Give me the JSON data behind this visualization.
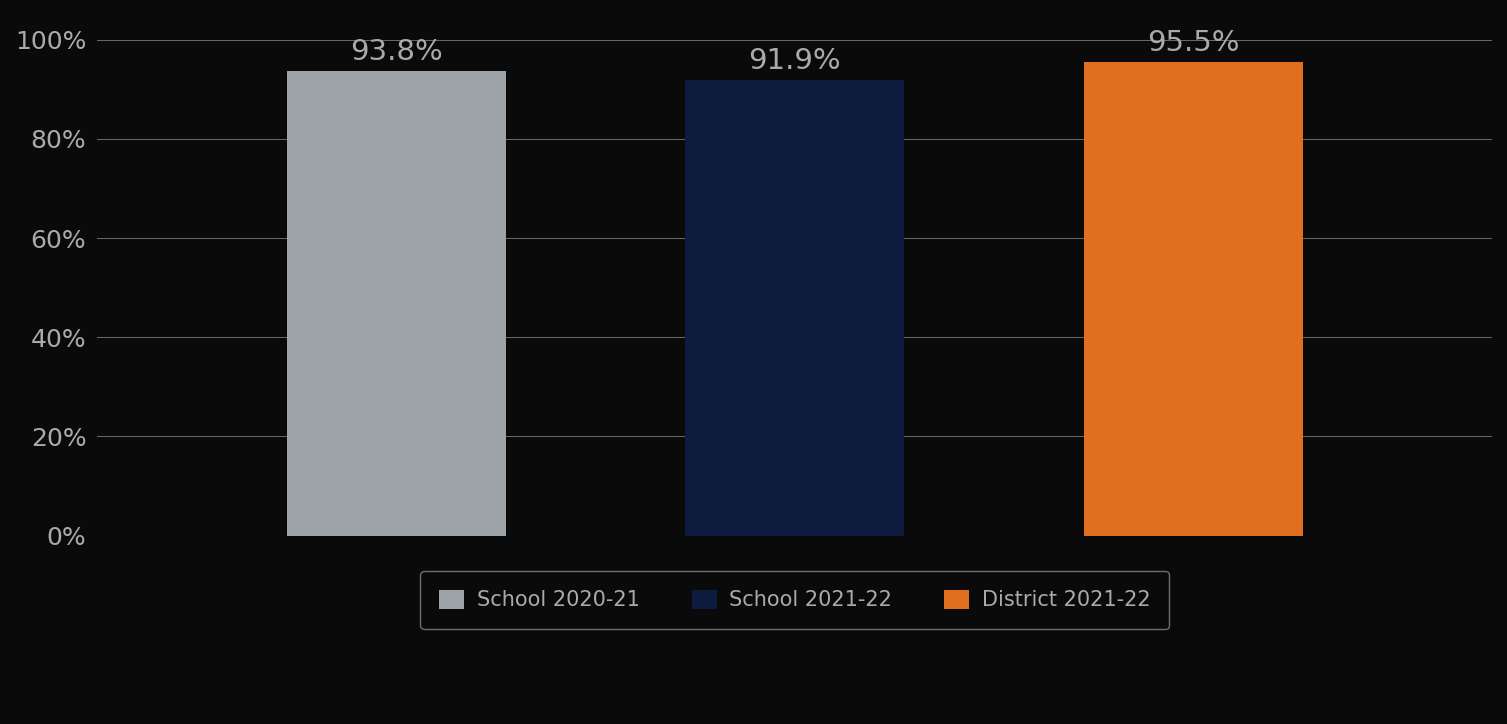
{
  "categories": [
    "School 2020-21",
    "School 2021-22",
    "District 2021-22"
  ],
  "values": [
    93.8,
    91.9,
    95.5
  ],
  "bar_colors": [
    "#9EA3A8",
    "#0D1B3E",
    "#E07020"
  ],
  "value_labels": [
    "93.8%",
    "91.9%",
    "95.5%"
  ],
  "ylim": [
    0,
    105
  ],
  "yticks": [
    0,
    20,
    40,
    60,
    80,
    100
  ],
  "yticklabels": [
    "0%",
    "20%",
    "40%",
    "60%",
    "80%",
    "100%"
  ],
  "background_color": "#0A0A0A",
  "text_color": "#AAAAAA",
  "grid_color": "#FFFFFF",
  "bar_width": 0.55,
  "tick_fontsize": 18,
  "legend_fontsize": 15,
  "value_label_fontsize": 21
}
